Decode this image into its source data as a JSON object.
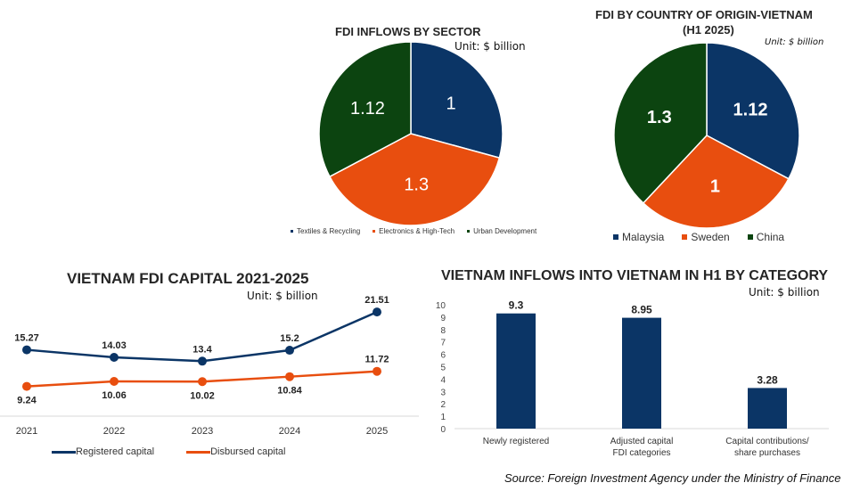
{
  "colors": {
    "navy": "#0b3566",
    "orange": "#e84e0f",
    "green": "#0c4410",
    "text": "#262626",
    "axis": "#d9d9d9"
  },
  "source": "Source: Foreign Investment Agency under the Ministry of Finance",
  "chart_data": [
    {
      "id": "sector_pie",
      "type": "pie",
      "title": "FDI INFLOWS BY SECTOR",
      "unit": "Unit: $ billion",
      "labels": [
        "Textiles & Recycling",
        "Electronics & High-Tech",
        "Urban Development"
      ],
      "values": [
        1,
        1.3,
        1.12
      ],
      "value_labels": [
        "1",
        "1.3",
        "1.12"
      ],
      "colors": [
        "#0b3566",
        "#e84e0f",
        "#0c4410"
      ],
      "legend_position": "bottom"
    },
    {
      "id": "country_pie",
      "type": "pie",
      "title": "FDI BY COUNTRY OF ORIGIN-VIETNAM",
      "subtitle": "(H1 2025)",
      "unit": "Unit: $ billion",
      "labels": [
        "Malaysia",
        "Sweden",
        "China"
      ],
      "values": [
        1.12,
        1,
        1.3
      ],
      "value_labels": [
        "1.12",
        "1",
        "1.3"
      ],
      "colors": [
        "#0b3566",
        "#e84e0f",
        "#0c4410"
      ],
      "legend_position": "bottom"
    },
    {
      "id": "capital_line",
      "type": "line",
      "title": "VIETNAM FDI CAPITAL 2021-2025",
      "unit": "Unit: $ billion",
      "categories": [
        "2021",
        "2022",
        "2023",
        "2024",
        "2025"
      ],
      "series": [
        {
          "name": "Registered capital",
          "values": [
            15.27,
            14.03,
            13.4,
            15.2,
            21.51
          ],
          "labels": [
            "15.27",
            "14.03",
            "13.4",
            "15.2",
            "21.51"
          ],
          "color": "#0b3566"
        },
        {
          "name": "Disbursed capital",
          "values": [
            9.24,
            10.06,
            10.02,
            10.84,
            11.72
          ],
          "labels": [
            "9.24",
            "10.06",
            "10.02",
            "10.84",
            "11.72"
          ],
          "color": "#e84e0f"
        }
      ],
      "ylim": [
        0,
        30
      ],
      "grid": false,
      "legend_position": "bottom"
    },
    {
      "id": "category_bar",
      "type": "bar",
      "title": "VIETNAM INFLOWS INTO VIETNAM IN H1 BY CATEGORY",
      "unit": "Unit: $ billion",
      "categories": [
        [
          "Newly registered"
        ],
        [
          "Adjusted capital",
          "FDI categories"
        ],
        [
          "Capital contributions/",
          "share purchases"
        ]
      ],
      "values": [
        9.3,
        8.95,
        3.28
      ],
      "value_labels": [
        "9.3",
        "8.95",
        "3.28"
      ],
      "yticks": [
        "0",
        "1",
        "2",
        "3",
        "4",
        "5",
        "6",
        "7",
        "8",
        "9",
        "10"
      ],
      "ylim": [
        0,
        10
      ],
      "color": "#0b3566",
      "grid": false
    }
  ]
}
